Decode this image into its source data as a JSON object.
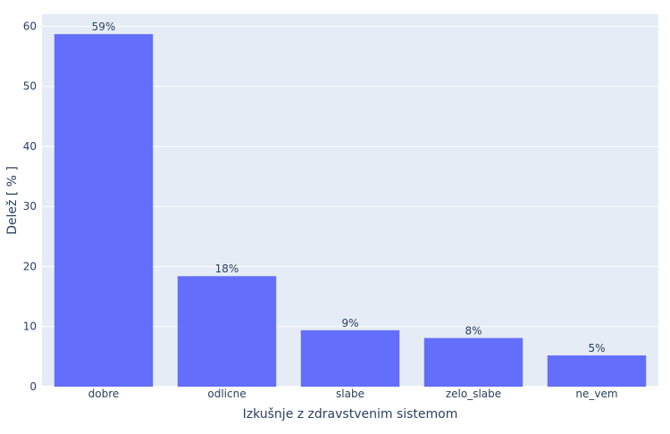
{
  "chart_data": {
    "type": "bar",
    "title": "",
    "xlabel": "Izkušnje z zdravstvenim sistemom",
    "ylabel": "Delež [ % ]",
    "categories": [
      "dobre",
      "odlicne",
      "slabe",
      "zelo_slabe",
      "ne_vem"
    ],
    "values": [
      58.7,
      18.4,
      9.4,
      8.1,
      5.2
    ],
    "data_labels": [
      "59%",
      "18%",
      "9%",
      "8%",
      "5%"
    ],
    "ylim": [
      0,
      62
    ],
    "yticks": [
      0,
      10,
      20,
      30,
      40,
      50,
      60
    ],
    "grid": true,
    "legend": "none"
  },
  "colors": {
    "bar": "#636efa",
    "plot_bg": "#e5ecf6",
    "grid": "#ffffff",
    "text": "#2a3f5f",
    "page_bg": "#ffffff"
  }
}
